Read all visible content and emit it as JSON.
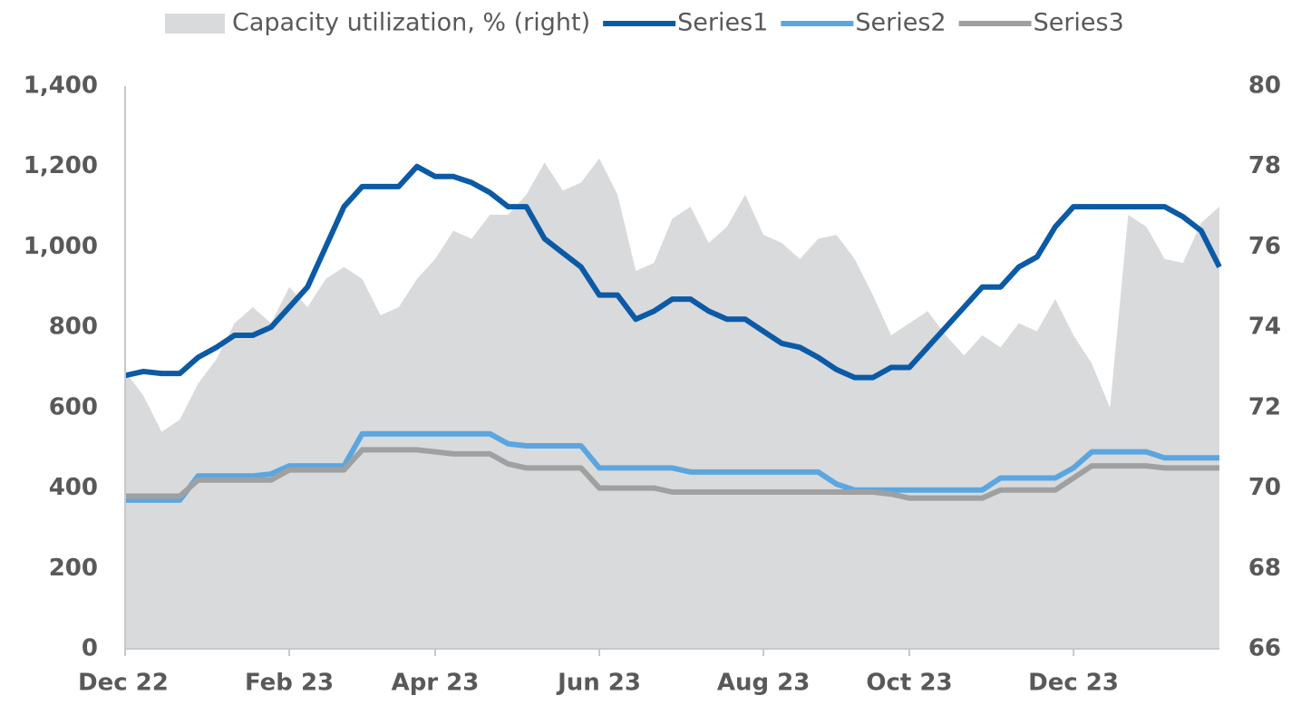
{
  "chart_data": {
    "type": "line",
    "categories": [
      "Dec 22",
      null,
      null,
      null,
      null,
      null,
      null,
      null,
      null,
      "Feb 23",
      null,
      null,
      null,
      null,
      null,
      null,
      null,
      "Apr 23",
      null,
      null,
      null,
      null,
      null,
      null,
      null,
      null,
      "Jun 23",
      null,
      null,
      null,
      null,
      null,
      null,
      null,
      null,
      "Aug 23",
      null,
      null,
      null,
      null,
      null,
      null,
      null,
      "Oct 23",
      null,
      null,
      null,
      null,
      null,
      null,
      null,
      null,
      "Dec 23",
      null,
      null,
      null,
      null,
      null,
      null,
      null,
      null
    ],
    "series": [
      {
        "name": "Capacity utilization, % (right)",
        "type": "area",
        "axis": "y2",
        "color": "#d9dadb",
        "values": [
          72.9,
          72.3,
          71.4,
          71.7,
          72.6,
          73.2,
          74.1,
          74.5,
          74.1,
          75.0,
          74.5,
          75.2,
          75.5,
          75.2,
          74.3,
          74.5,
          75.2,
          75.7,
          76.4,
          76.2,
          76.8,
          76.8,
          77.3,
          78.1,
          77.4,
          77.6,
          78.2,
          77.3,
          75.4,
          75.6,
          76.7,
          77.0,
          76.1,
          76.5,
          77.3,
          76.3,
          76.1,
          75.7,
          76.2,
          76.3,
          75.7,
          74.8,
          73.8,
          74.1,
          74.4,
          73.8,
          73.3,
          73.8,
          73.5,
          74.1,
          73.9,
          74.7,
          73.8,
          73.1,
          72.0,
          76.8,
          76.5,
          75.7,
          75.6,
          76.6,
          77.0
        ]
      },
      {
        "name": "Series1",
        "color": "#0b5aa6",
        "values": [
          680,
          690,
          685,
          685,
          725,
          750,
          780,
          780,
          800,
          850,
          900,
          1000,
          1100,
          1150,
          1150,
          1150,
          1200,
          1175,
          1175,
          1160,
          1135,
          1100,
          1100,
          1020,
          985,
          950,
          880,
          880,
          820,
          840,
          870,
          870,
          840,
          820,
          820,
          790,
          760,
          750,
          725,
          695,
          675,
          675,
          700,
          700,
          750,
          800,
          850,
          900,
          900,
          950,
          975,
          1050,
          1100,
          1100,
          1100,
          1100,
          1100,
          1100,
          1075,
          1040,
          950
        ]
      },
      {
        "name": "Series2",
        "color": "#5ba6e0",
        "values": [
          370,
          370,
          370,
          370,
          430,
          430,
          430,
          430,
          435,
          455,
          455,
          455,
          455,
          535,
          535,
          535,
          535,
          535,
          535,
          535,
          535,
          510,
          505,
          505,
          505,
          505,
          450,
          450,
          450,
          450,
          450,
          440,
          440,
          440,
          440,
          440,
          440,
          440,
          440,
          410,
          395,
          395,
          395,
          395,
          395,
          395,
          395,
          395,
          425,
          425,
          425,
          425,
          450,
          490,
          490,
          490,
          490,
          475,
          475,
          475,
          475
        ]
      },
      {
        "name": "Series3",
        "color": "#a0a0a0",
        "values": [
          380,
          380,
          380,
          380,
          420,
          420,
          420,
          420,
          420,
          445,
          445,
          445,
          445,
          495,
          495,
          495,
          495,
          490,
          485,
          485,
          485,
          460,
          450,
          450,
          450,
          450,
          400,
          400,
          400,
          400,
          390,
          390,
          390,
          390,
          390,
          390,
          390,
          390,
          390,
          390,
          390,
          390,
          385,
          375,
          375,
          375,
          375,
          375,
          395,
          395,
          395,
          395,
          425,
          455,
          455,
          455,
          455,
          450,
          450,
          450,
          450
        ]
      }
    ],
    "ylim": [
      0,
      1400
    ],
    "yticks": [
      0,
      200,
      400,
      600,
      800,
      {
        "value": 1000,
        "label": "1,000"
      },
      {
        "value": 1200,
        "label": "1,200"
      },
      {
        "value": 1400,
        "label": "1,400"
      }
    ],
    "y2lim": [
      66,
      80
    ],
    "y2ticks": [
      66,
      68,
      70,
      72,
      74,
      76,
      78,
      80
    ],
    "legend": "top"
  }
}
